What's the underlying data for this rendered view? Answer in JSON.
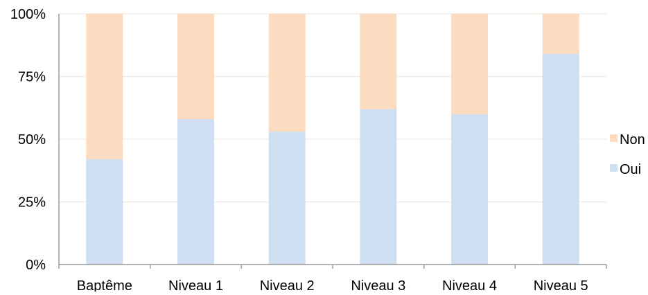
{
  "chart_data": {
    "type": "bar",
    "stacked": true,
    "categories": [
      "Baptême",
      "Niveau 1",
      "Niveau 2",
      "Niveau 3",
      "Niveau 4",
      "Niveau 5"
    ],
    "series": [
      {
        "name": "Oui",
        "values": [
          42,
          58,
          53,
          62,
          60,
          84
        ],
        "color": "#cfdff2"
      },
      {
        "name": "Non",
        "values": [
          58,
          42,
          47,
          38,
          40,
          16
        ],
        "color": "#fbdcc0"
      }
    ],
    "yticks": [
      "0%",
      "25%",
      "50%",
      "75%",
      "100%"
    ],
    "ylim": [
      0,
      100
    ],
    "legend": {
      "placement": "right",
      "items": [
        {
          "label": "Non",
          "color": "#fbdcc0"
        },
        {
          "label": "Oui",
          "color": "#cfdff2"
        }
      ]
    },
    "grid": true,
    "gridColor": "#f1ede4",
    "axisColor": "#9a9a9a"
  }
}
